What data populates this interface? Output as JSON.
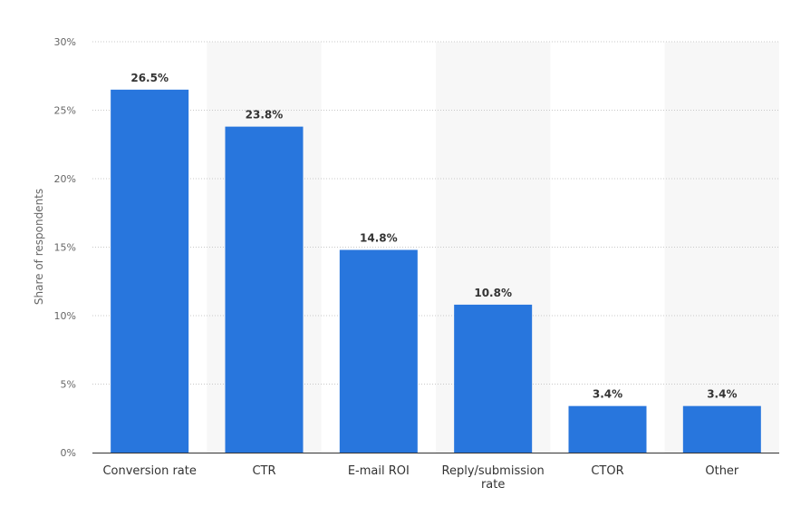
{
  "chart_data": {
    "type": "bar",
    "categories": [
      "Conversion rate",
      "CTR",
      "E-mail ROI",
      "Reply/submission rate",
      "CTOR",
      "Other"
    ],
    "category_lines": [
      [
        "Conversion rate"
      ],
      [
        "CTR"
      ],
      [
        "E-mail ROI"
      ],
      [
        "Reply/submission",
        "rate"
      ],
      [
        "CTOR"
      ],
      [
        "Other"
      ]
    ],
    "values": [
      26.5,
      23.8,
      14.8,
      10.8,
      3.4,
      3.4
    ],
    "data_labels": [
      "26.5%",
      "23.8%",
      "14.8%",
      "10.8%",
      "3.4%",
      "3.4%"
    ],
    "ylabel": "Share of respondents",
    "xlabel": "",
    "title": "",
    "ylim": [
      0,
      30
    ],
    "yticks": [
      0,
      5,
      10,
      15,
      20,
      25,
      30
    ],
    "ytick_labels": [
      "0%",
      "5%",
      "10%",
      "15%",
      "20%",
      "25%",
      "30%"
    ],
    "grid": true,
    "alternating_band_color": "#f7f7f7",
    "bar_color": "#2876dd"
  }
}
